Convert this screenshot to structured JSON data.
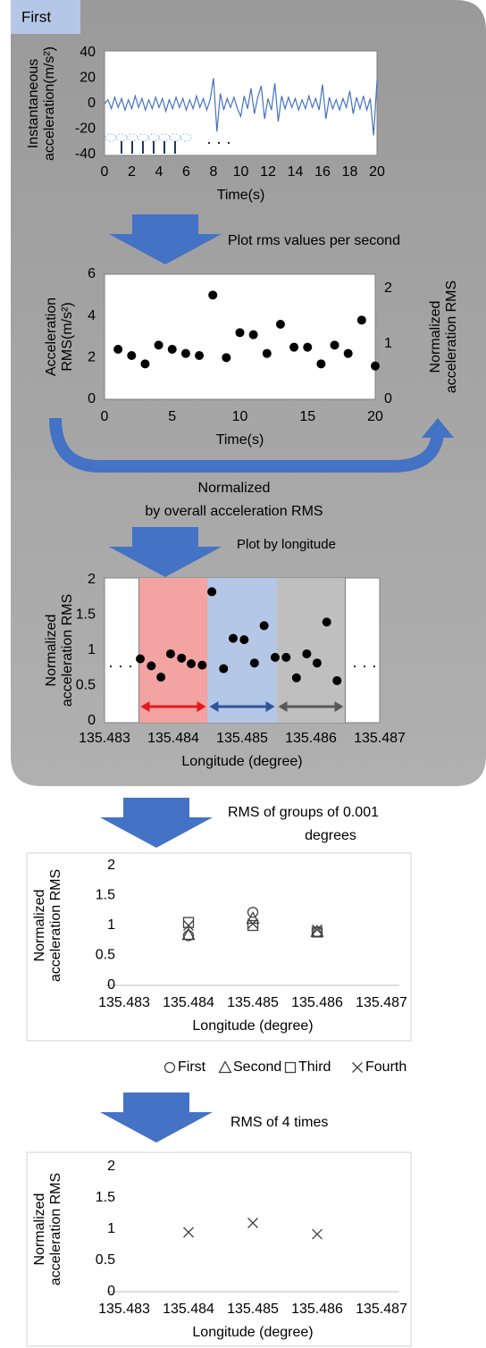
{
  "panel_label": "First",
  "steps": [
    [
      "Plot rms values per second"
    ],
    [
      "Normalized",
      "by overall acceleration RMS"
    ],
    [
      "Plot by longitude"
    ],
    [
      "RMS of groups of 0.001",
      "degrees"
    ],
    [
      "RMS of 4 times"
    ]
  ],
  "chart_data": [
    {
      "type": "line",
      "color": "#4472c4",
      "ylabel": [
        "Instantaneous",
        "acceleration(m/s²)"
      ],
      "xlabel": "Time(s)",
      "annotations": [
        "· · ·"
      ],
      "x": [
        0,
        0.25,
        0.5,
        0.75,
        1,
        1.25,
        1.5,
        1.75,
        2,
        2.25,
        2.5,
        2.75,
        3,
        3.25,
        3.5,
        3.75,
        4,
        4.25,
        4.5,
        4.75,
        5,
        5.25,
        5.5,
        5.75,
        6,
        6.25,
        6.5,
        6.75,
        7,
        7.25,
        7.5,
        7.75,
        8,
        8.25,
        8.5,
        8.75,
        9,
        9.25,
        9.5,
        9.75,
        10,
        10.25,
        10.5,
        10.75,
        11,
        11.25,
        11.5,
        11.75,
        12,
        12.25,
        12.5,
        12.75,
        13,
        13.25,
        13.5,
        13.75,
        14,
        14.25,
        14.5,
        14.75,
        15,
        15.25,
        15.5,
        15.75,
        16,
        16.25,
        16.5,
        16.75,
        17,
        17.25,
        17.5,
        17.75,
        18,
        18.25,
        18.5,
        18.75,
        19,
        19.25,
        19.5,
        19.75,
        20
      ],
      "values": [
        0,
        3,
        -4,
        5,
        -3,
        4,
        -5,
        3,
        -4,
        6,
        -3,
        4,
        -5,
        3,
        -4,
        5,
        -3,
        4,
        -6,
        3,
        -4,
        5,
        -3,
        4,
        -5,
        3,
        -4,
        6,
        -3,
        4,
        -5,
        3,
        20,
        -22,
        8,
        -5,
        4,
        -3,
        5,
        -4,
        -10,
        6,
        -4,
        12,
        -8,
        5,
        14,
        -12,
        4,
        -5,
        16,
        -14,
        6,
        -4,
        5,
        -3,
        4,
        -5,
        3,
        -4,
        6,
        -3,
        4,
        -5,
        15,
        -12,
        5,
        -4,
        3,
        -5,
        4,
        -3,
        10,
        -8,
        5,
        -4,
        6,
        -5,
        4,
        -25,
        18
      ],
      "xlim": [
        0,
        20
      ],
      "xticks": [
        0,
        2,
        4,
        6,
        8,
        10,
        12,
        14,
        16,
        18,
        20
      ],
      "ylim": [
        -40,
        40
      ],
      "yticks": [
        -40,
        -20,
        0,
        20,
        40
      ]
    },
    {
      "type": "scatter",
      "marker": "dot",
      "ylabel": [
        "Acceleration",
        "RMS(m/s²)"
      ],
      "y2label": [
        "Normalized",
        "acceleration RMS"
      ],
      "xlabel": "Time(s)",
      "x": [
        1,
        2,
        3,
        4,
        5,
        6,
        7,
        8,
        9,
        10,
        11,
        12,
        13,
        14,
        15,
        16,
        17,
        18,
        19,
        20
      ],
      "values": [
        2.4,
        2.1,
        1.7,
        2.6,
        2.4,
        2.2,
        2.1,
        5.0,
        2.0,
        3.2,
        3.1,
        2.2,
        3.6,
        2.5,
        2.5,
        1.7,
        2.6,
        2.2,
        3.8,
        1.6
      ],
      "xlim": [
        0,
        20
      ],
      "xticks": [
        0,
        5,
        10,
        15,
        20
      ],
      "ylim": [
        0,
        6
      ],
      "yticks": [
        0,
        2,
        4,
        6
      ],
      "y2lim": [
        0,
        2.25
      ],
      "y2ticks": [
        0,
        1,
        2
      ]
    },
    {
      "type": "scatter",
      "marker": "dot",
      "ylabel": [
        "Normalized",
        "acceleration RMS"
      ],
      "xlabel": "Longitude (degree)",
      "annotations": [
        "· · ·",
        "· · ·"
      ],
      "bands": [
        {
          "range": [
            135.4835,
            135.4845
          ],
          "color": "#f4a3a3",
          "arrow_color": "#e31a1c"
        },
        {
          "range": [
            135.4845,
            135.4855
          ],
          "color": "#b4c7e7",
          "arrow_color": "#2f5597"
        },
        {
          "range": [
            135.4855,
            135.4865
          ],
          "color": "#bfbfbf",
          "arrow_color": "#595959"
        }
      ],
      "x": [
        135.48352,
        135.48368,
        135.48382,
        135.48396,
        135.48412,
        135.48426,
        135.48442,
        135.48456,
        135.48473,
        135.48487,
        135.48503,
        135.48518,
        135.48532,
        135.48548,
        135.48564,
        135.48579,
        135.48594,
        135.48609,
        135.48623,
        135.48638
      ],
      "values": [
        0.88,
        0.78,
        0.62,
        0.95,
        0.89,
        0.81,
        0.79,
        1.83,
        0.74,
        1.17,
        1.15,
        0.82,
        1.35,
        0.9,
        0.9,
        0.61,
        0.95,
        0.82,
        1.4,
        0.57
      ],
      "xlim": [
        135.483,
        135.487
      ],
      "xticks": [
        135.483,
        135.484,
        135.485,
        135.486,
        135.487
      ],
      "ylim": [
        0,
        2
      ],
      "yticks": [
        0,
        0.5,
        1,
        1.5,
        2
      ]
    },
    {
      "type": "scatter",
      "ylabel": [
        "Normalized",
        "acceleration RMS"
      ],
      "xlabel": "Longitude (degree)",
      "x": [
        135.484,
        135.485,
        135.486
      ],
      "series": [
        {
          "name": "First",
          "marker": "circle",
          "color": "#404040",
          "values": [
            0.83,
            1.22,
            0.89
          ]
        },
        {
          "name": "Second",
          "marker": "triangle",
          "color": "#404040",
          "values": [
            0.85,
            1.12,
            0.9
          ]
        },
        {
          "name": "Third",
          "marker": "square",
          "color": "#404040",
          "values": [
            1.05,
            1.0,
            0.89
          ]
        },
        {
          "name": "Fourth",
          "marker": "x",
          "color": "#404040",
          "values": [
            1.0,
            1.03,
            0.93
          ]
        }
      ],
      "xlim": [
        135.483,
        135.487
      ],
      "xticks": [
        135.483,
        135.484,
        135.485,
        135.486,
        135.487
      ],
      "ylim": [
        0,
        2
      ],
      "yticks": [
        0,
        0.5,
        1,
        1.5,
        2
      ]
    },
    {
      "type": "scatter",
      "marker": "x",
      "color": "#404040",
      "ylabel": [
        "Normalized",
        "acceleration RMS"
      ],
      "xlabel": "Longitude (degree)",
      "x": [
        135.484,
        135.485,
        135.486
      ],
      "values": [
        0.95,
        1.1,
        0.92
      ],
      "xlim": [
        135.483,
        135.487
      ],
      "xticks": [
        135.483,
        135.484,
        135.485,
        135.486,
        135.487
      ],
      "ylim": [
        0,
        2
      ],
      "yticks": [
        0,
        0.5,
        1,
        1.5,
        2
      ]
    }
  ]
}
